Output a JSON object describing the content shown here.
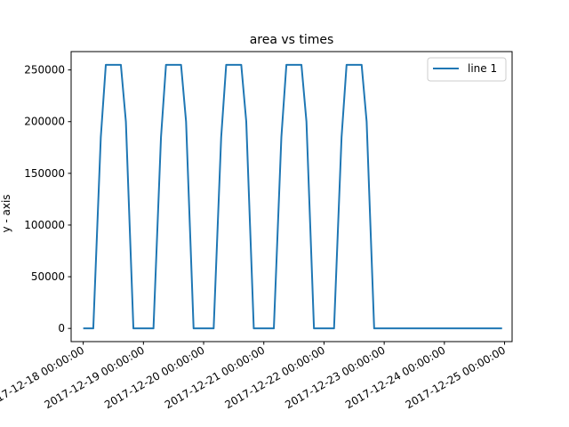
{
  "chart_data": {
    "type": "line",
    "title": "area vs times",
    "xlabel": "",
    "ylabel": "y - axis",
    "ylim": [
      -12750,
      267750
    ],
    "xlim": [
      "2017-12-17 19:10:00",
      "2017-12-25 03:00:00"
    ],
    "grid": false,
    "legend": {
      "position": "top-right"
    },
    "x_tick_labels": [
      "2017-12-18 00:00:00",
      "2017-12-19 00:00:00",
      "2017-12-20 00:00:00",
      "2017-12-21 00:00:00",
      "2017-12-22 00:00:00",
      "2017-12-23 00:00:00",
      "2017-12-24 00:00:00",
      "2017-12-25 00:00:00"
    ],
    "y_ticks": [
      0,
      50000,
      100000,
      150000,
      200000,
      250000
    ],
    "y_tick_labels": [
      "0",
      "50000",
      "100000",
      "150000",
      "200000",
      "250000"
    ],
    "series": [
      {
        "name": "line 1",
        "color": "#1f77b4",
        "x": [
          "2017-12-18 00:00:00",
          "2017-12-18 04:00:00",
          "2017-12-18 07:00:00",
          "2017-12-18 09:00:00",
          "2017-12-18 15:00:00",
          "2017-12-18 17:00:00",
          "2017-12-18 20:00:00",
          "2017-12-19 00:00:00",
          "2017-12-19 04:00:00",
          "2017-12-19 07:00:00",
          "2017-12-19 09:00:00",
          "2017-12-19 15:00:00",
          "2017-12-19 17:00:00",
          "2017-12-19 20:00:00",
          "2017-12-20 00:00:00",
          "2017-12-20 04:00:00",
          "2017-12-20 07:00:00",
          "2017-12-20 09:00:00",
          "2017-12-20 15:00:00",
          "2017-12-20 17:00:00",
          "2017-12-20 20:00:00",
          "2017-12-21 00:00:00",
          "2017-12-21 04:00:00",
          "2017-12-21 07:00:00",
          "2017-12-21 09:00:00",
          "2017-12-21 15:00:00",
          "2017-12-21 17:00:00",
          "2017-12-21 20:00:00",
          "2017-12-22 00:00:00",
          "2017-12-22 04:00:00",
          "2017-12-22 07:00:00",
          "2017-12-22 09:00:00",
          "2017-12-22 15:00:00",
          "2017-12-22 17:00:00",
          "2017-12-22 20:00:00",
          "2017-12-23 00:00:00",
          "2017-12-24 00:00:00",
          "2017-12-24 23:00:00"
        ],
        "y": [
          0,
          0,
          185000,
          255000,
          255000,
          200000,
          0,
          0,
          0,
          185000,
          255000,
          255000,
          200000,
          0,
          0,
          0,
          185000,
          255000,
          255000,
          200000,
          0,
          0,
          0,
          185000,
          255000,
          255000,
          200000,
          0,
          0,
          0,
          185000,
          255000,
          255000,
          200000,
          0,
          0,
          0,
          0
        ]
      }
    ]
  }
}
